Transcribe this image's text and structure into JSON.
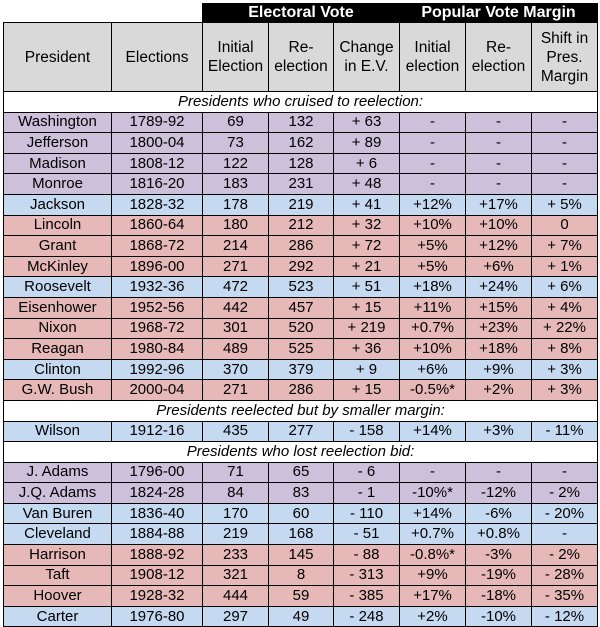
{
  "super_header": {
    "electoral": "Electoral Vote",
    "popular": "Popular Vote Margin"
  },
  "columns": [
    "President",
    "Elections",
    "Initial Election",
    "Re-election",
    "Change in E.V.",
    "Initial election",
    "Re-election",
    "Shift in Pres. Margin"
  ],
  "sections": [
    {
      "title": "Presidents who cruised to reelection:",
      "rows": [
        {
          "color": "purple",
          "cells": [
            "Washington",
            "1789-92",
            "69",
            "132",
            "+ 63",
            "-",
            "-",
            "-"
          ]
        },
        {
          "color": "purple",
          "cells": [
            "Jefferson",
            "1800-04",
            "73",
            "162",
            "+ 89",
            "-",
            "-",
            "-"
          ]
        },
        {
          "color": "purple",
          "cells": [
            "Madison",
            "1808-12",
            "122",
            "128",
            "+ 6",
            "-",
            "-",
            "-"
          ]
        },
        {
          "color": "purple",
          "cells": [
            "Monroe",
            "1816-20",
            "183",
            "231",
            "+ 48",
            "-",
            "-",
            "-"
          ]
        },
        {
          "color": "blue",
          "cells": [
            "Jackson",
            "1828-32",
            "178",
            "219",
            "+ 41",
            "+12%",
            "+17%",
            "+ 5%"
          ]
        },
        {
          "color": "red",
          "cells": [
            "Lincoln",
            "1860-64",
            "180",
            "212",
            "+ 32",
            "+10%",
            "+10%",
            "0"
          ]
        },
        {
          "color": "red",
          "cells": [
            "Grant",
            "1868-72",
            "214",
            "286",
            "+ 72",
            "+5%",
            "+12%",
            "+ 7%"
          ]
        },
        {
          "color": "red",
          "cells": [
            "McKinley",
            "1896-00",
            "271",
            "292",
            "+ 21",
            "+5%",
            "+6%",
            "+ 1%"
          ]
        },
        {
          "color": "blue",
          "cells": [
            "Roosevelt",
            "1932-36",
            "472",
            "523",
            "+ 51",
            "+18%",
            "+24%",
            "+ 6%"
          ]
        },
        {
          "color": "red",
          "cells": [
            "Eisenhower",
            "1952-56",
            "442",
            "457",
            "+ 15",
            "+11%",
            "+15%",
            "+ 4%"
          ]
        },
        {
          "color": "red",
          "cells": [
            "Nixon",
            "1968-72",
            "301",
            "520",
            "+ 219",
            "+0.7%",
            "+23%",
            "+ 22%"
          ]
        },
        {
          "color": "red",
          "cells": [
            "Reagan",
            "1980-84",
            "489",
            "525",
            "+ 36",
            "+10%",
            "+18%",
            "+ 8%"
          ]
        },
        {
          "color": "blue",
          "cells": [
            "Clinton",
            "1992-96",
            "370",
            "379",
            "+ 9",
            "+6%",
            "+9%",
            "+ 3%"
          ]
        },
        {
          "color": "red",
          "cells": [
            "G.W. Bush",
            "2000-04",
            "271",
            "286",
            "+ 15",
            "-0.5%*",
            "+2%",
            "+ 3%"
          ]
        }
      ]
    },
    {
      "title": "Presidents reelected but by smaller margin:",
      "rows": [
        {
          "color": "blue",
          "cells": [
            "Wilson",
            "1912-16",
            "435",
            "277",
            "- 158",
            "+14%",
            "+3%",
            "- 11%"
          ]
        }
      ]
    },
    {
      "title": "Presidents who lost reelection bid:",
      "rows": [
        {
          "color": "purple",
          "cells": [
            "J. Adams",
            "1796-00",
            "71",
            "65",
            "- 6",
            "-",
            "-",
            "-"
          ]
        },
        {
          "color": "purple",
          "cells": [
            "J.Q. Adams",
            "1824-28",
            "84",
            "83",
            "- 1",
            "-10%*",
            "-12%",
            "- 2%"
          ]
        },
        {
          "color": "blue",
          "cells": [
            "Van Buren",
            "1836-40",
            "170",
            "60",
            "- 110",
            "+14%",
            "-6%",
            "- 20%"
          ]
        },
        {
          "color": "blue",
          "cells": [
            "Cleveland",
            "1884-88",
            "219",
            "168",
            "- 51",
            "+0.7%",
            "+0.8%",
            "-"
          ]
        },
        {
          "color": "red",
          "cells": [
            "Harrison",
            "1888-92",
            "233",
            "145",
            "- 88",
            "-0.8%*",
            "-3%",
            "- 2%"
          ]
        },
        {
          "color": "red",
          "cells": [
            "Taft",
            "1908-12",
            "321",
            "8",
            "- 313",
            "+9%",
            "-19%",
            "- 28%"
          ]
        },
        {
          "color": "red",
          "cells": [
            "Hoover",
            "1928-32",
            "444",
            "59",
            "- 385",
            "+17%",
            "-18%",
            "- 35%"
          ]
        },
        {
          "color": "blue",
          "cells": [
            "Carter",
            "1976-80",
            "297",
            "49",
            "- 248",
            "+2%",
            "-10%",
            "- 12%"
          ]
        }
      ]
    }
  ],
  "colors": {
    "purple": "#ccc0da",
    "blue": "#c5d9f1",
    "red": "#e6b9b8",
    "header": "#d9d9d9"
  }
}
